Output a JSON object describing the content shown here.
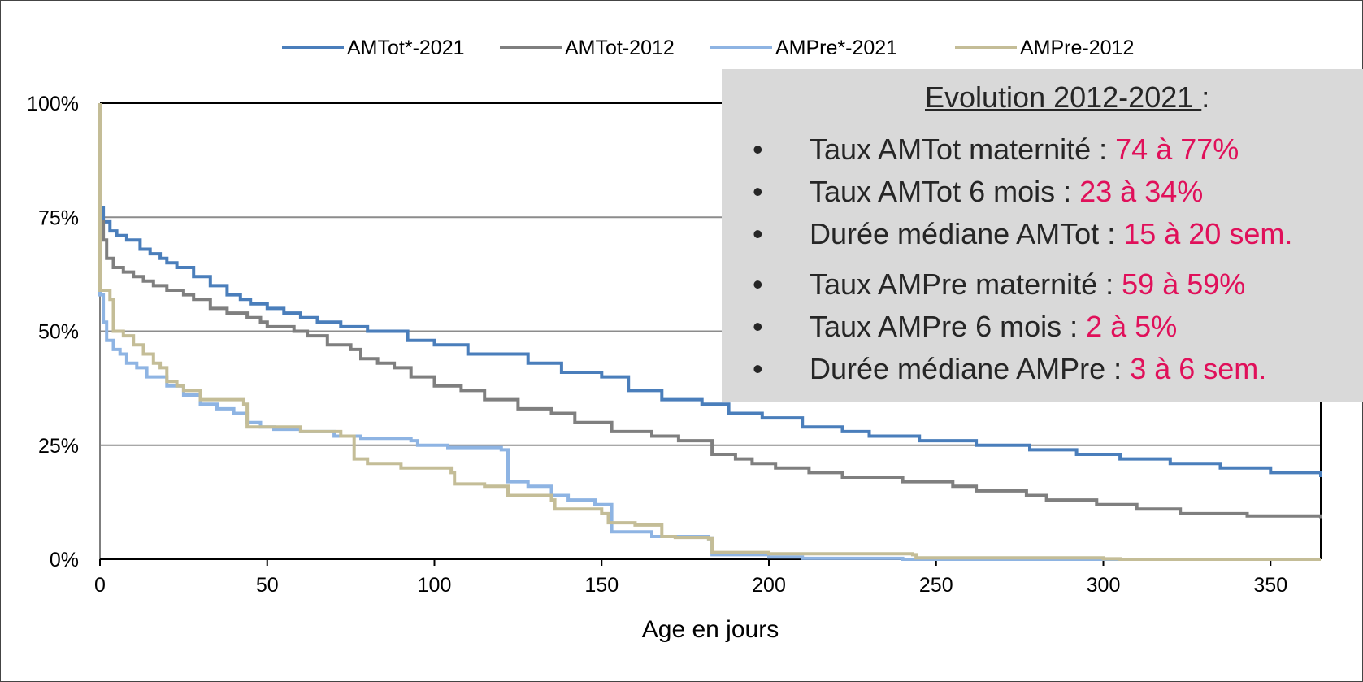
{
  "chart_data": {
    "type": "line",
    "xlabel": "Age en jours",
    "ylabel": "",
    "xlim": [
      0,
      365
    ],
    "ylim": [
      0,
      100
    ],
    "xticks": [
      0,
      50,
      100,
      150,
      200,
      250,
      300,
      350
    ],
    "yticks": [
      "0%",
      "25%",
      "50%",
      "75%",
      "100%"
    ],
    "ytick_values": [
      0,
      25,
      50,
      75,
      100
    ],
    "grid": "horizontal",
    "legend_position": "top",
    "series": [
      {
        "name": "AMTot*-2021",
        "color": "#4a7ebb",
        "points": [
          [
            0,
            100
          ],
          [
            0,
            77
          ],
          [
            1,
            74
          ],
          [
            3,
            72
          ],
          [
            5,
            71
          ],
          [
            8,
            70
          ],
          [
            12,
            68
          ],
          [
            15,
            67
          ],
          [
            18,
            66
          ],
          [
            20,
            65
          ],
          [
            23,
            64
          ],
          [
            28,
            62
          ],
          [
            33,
            60
          ],
          [
            38,
            58
          ],
          [
            42,
            57
          ],
          [
            45,
            56
          ],
          [
            50,
            55
          ],
          [
            55,
            54
          ],
          [
            60,
            53
          ],
          [
            65,
            52
          ],
          [
            72,
            51
          ],
          [
            80,
            50
          ],
          [
            92,
            48
          ],
          [
            100,
            47
          ],
          [
            110,
            45
          ],
          [
            128,
            43
          ],
          [
            138,
            41
          ],
          [
            150,
            40
          ],
          [
            158,
            37
          ],
          [
            168,
            35
          ],
          [
            180,
            34
          ],
          [
            188,
            32
          ],
          [
            198,
            31
          ],
          [
            210,
            29
          ],
          [
            222,
            28
          ],
          [
            230,
            27
          ],
          [
            245,
            26
          ],
          [
            262,
            25
          ],
          [
            278,
            24
          ],
          [
            292,
            23
          ],
          [
            305,
            22
          ],
          [
            320,
            21
          ],
          [
            335,
            20
          ],
          [
            350,
            19
          ],
          [
            365,
            18
          ]
        ]
      },
      {
        "name": "AMTot-2012",
        "color": "#7f7f7f",
        "points": [
          [
            0,
            100
          ],
          [
            0,
            74
          ],
          [
            1,
            70
          ],
          [
            2,
            66
          ],
          [
            4,
            64
          ],
          [
            7,
            63
          ],
          [
            10,
            62
          ],
          [
            13,
            61
          ],
          [
            16,
            60
          ],
          [
            20,
            59
          ],
          [
            25,
            58
          ],
          [
            28,
            57
          ],
          [
            33,
            55
          ],
          [
            38,
            54
          ],
          [
            44,
            53
          ],
          [
            48,
            52
          ],
          [
            50,
            51
          ],
          [
            58,
            50
          ],
          [
            62,
            49
          ],
          [
            68,
            47
          ],
          [
            75,
            46
          ],
          [
            78,
            44
          ],
          [
            83,
            43
          ],
          [
            88,
            42
          ],
          [
            93,
            40
          ],
          [
            100,
            38
          ],
          [
            108,
            37
          ],
          [
            115,
            35
          ],
          [
            125,
            33
          ],
          [
            135,
            32
          ],
          [
            142,
            30
          ],
          [
            153,
            28
          ],
          [
            165,
            27
          ],
          [
            173,
            26
          ],
          [
            183,
            23
          ],
          [
            190,
            22
          ],
          [
            195,
            21
          ],
          [
            202,
            20
          ],
          [
            212,
            19
          ],
          [
            222,
            18
          ],
          [
            240,
            17
          ],
          [
            255,
            16
          ],
          [
            262,
            15
          ],
          [
            277,
            14
          ],
          [
            283,
            13
          ],
          [
            298,
            12
          ],
          [
            310,
            11
          ],
          [
            323,
            10
          ],
          [
            343,
            9.5
          ],
          [
            365,
            9
          ]
        ]
      },
      {
        "name": "AMPre*-2021",
        "color": "#8eb4e3",
        "points": [
          [
            0,
            100
          ],
          [
            0,
            58
          ],
          [
            1,
            52
          ],
          [
            2,
            48
          ],
          [
            4,
            46
          ],
          [
            6,
            45
          ],
          [
            8,
            43
          ],
          [
            11,
            42
          ],
          [
            14,
            40
          ],
          [
            20,
            38
          ],
          [
            25,
            36
          ],
          [
            30,
            34
          ],
          [
            35,
            33
          ],
          [
            40,
            32
          ],
          [
            44,
            30
          ],
          [
            48,
            29
          ],
          [
            52,
            28.5
          ],
          [
            60,
            28
          ],
          [
            70,
            27
          ],
          [
            78,
            26.5
          ],
          [
            93,
            26
          ],
          [
            95,
            25
          ],
          [
            104,
            24.5
          ],
          [
            120,
            24
          ],
          [
            122,
            17
          ],
          [
            128,
            16
          ],
          [
            135,
            14
          ],
          [
            140,
            13
          ],
          [
            148,
            12
          ],
          [
            153,
            6
          ],
          [
            165,
            5
          ],
          [
            182,
            4.5
          ],
          [
            183,
            1
          ],
          [
            200,
            0.5
          ],
          [
            210,
            0.2
          ],
          [
            240,
            0
          ],
          [
            365,
            0
          ]
        ]
      },
      {
        "name": "AMPre-2012",
        "color": "#c4bd97",
        "points": [
          [
            0,
            100
          ],
          [
            0,
            59
          ],
          [
            3,
            57
          ],
          [
            4,
            50
          ],
          [
            7,
            49
          ],
          [
            10,
            47
          ],
          [
            13,
            45
          ],
          [
            16,
            43
          ],
          [
            18,
            42
          ],
          [
            20,
            39
          ],
          [
            23,
            38
          ],
          [
            25,
            37
          ],
          [
            30,
            35
          ],
          [
            43,
            34
          ],
          [
            44,
            29
          ],
          [
            60,
            28
          ],
          [
            72,
            27
          ],
          [
            76,
            22
          ],
          [
            80,
            21
          ],
          [
            90,
            20
          ],
          [
            105,
            19
          ],
          [
            106,
            16.5
          ],
          [
            115,
            16
          ],
          [
            122,
            14
          ],
          [
            135,
            13
          ],
          [
            136,
            11
          ],
          [
            150,
            10
          ],
          [
            152,
            8
          ],
          [
            160,
            7.5
          ],
          [
            168,
            5
          ],
          [
            172,
            4.8
          ],
          [
            182,
            4.5
          ],
          [
            183,
            1.5
          ],
          [
            200,
            1.2
          ],
          [
            243,
            1
          ],
          [
            244,
            0.3
          ],
          [
            300,
            0.1
          ],
          [
            305,
            0
          ],
          [
            365,
            0
          ]
        ]
      }
    ]
  },
  "infobox": {
    "title": "Evolution 2012-2021 ",
    "title_suffix": ":",
    "bullet": "•",
    "items": [
      {
        "label": "Taux AMTot maternité : ",
        "value": "74 à 77%"
      },
      {
        "label": "Taux AMTot 6 mois : ",
        "value": "23 à 34%"
      },
      {
        "label": "Durée médiane AMTot : ",
        "value": "15  à 20 sem."
      },
      {
        "label": "Taux AMPre maternité : ",
        "value": "59 à 59%"
      },
      {
        "label": "Taux AMPre 6 mois : ",
        "value": "2 à 5%"
      },
      {
        "label": "Durée médiane AMPre : ",
        "value": "3 à 6 sem."
      }
    ],
    "highlight_color": "#e0105a"
  }
}
